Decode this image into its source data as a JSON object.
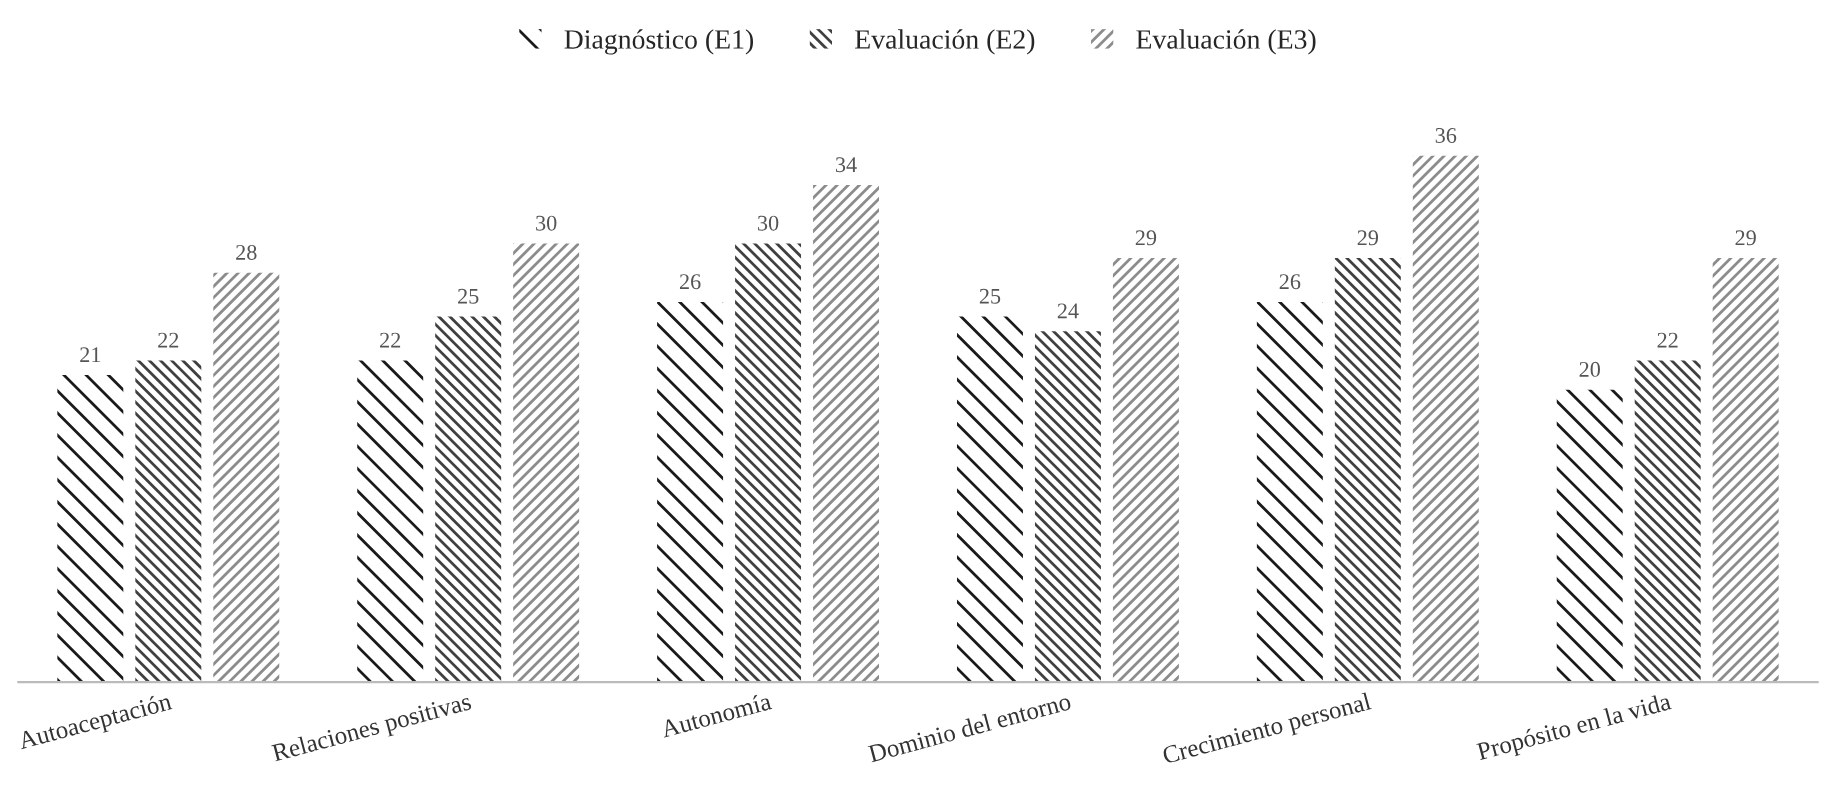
{
  "chart_data": {
    "type": "bar",
    "categories": [
      "Autoaceptación",
      "Relaciones positivas",
      "Autonomía",
      "Dominio del entorno",
      "Crecimiento personal",
      "Propósito en la vida"
    ],
    "series": [
      {
        "name": "Diagnóstico (E1)",
        "color": "#1a1a1a",
        "values": [
          21,
          22,
          26,
          25,
          26,
          20
        ]
      },
      {
        "name": "Evaluación (E2)",
        "color": "#404040",
        "values": [
          22,
          25,
          30,
          24,
          29,
          22
        ]
      },
      {
        "name": "Evaluación (E3)",
        "color": "#8c8c8c",
        "values": [
          28,
          30,
          34,
          29,
          36,
          29
        ]
      }
    ],
    "data_labels": true,
    "legend": "top",
    "grid": false
  }
}
